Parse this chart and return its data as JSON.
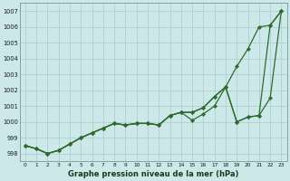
{
  "xlabel": "Graphe pression niveau de la mer (hPa)",
  "bg_color": "#cce8e8",
  "grid_color": "#aacccc",
  "line_color": "#2d6a2d",
  "marker_color": "#2d6a2d",
  "ylim": [
    997.5,
    1007.5
  ],
  "yticks": [
    998,
    999,
    1000,
    1001,
    1002,
    1003,
    1004,
    1005,
    1006,
    1007
  ],
  "xticks": [
    0,
    1,
    2,
    3,
    4,
    5,
    6,
    7,
    8,
    9,
    10,
    11,
    12,
    13,
    14,
    15,
    16,
    17,
    18,
    19,
    20,
    21,
    22,
    23
  ],
  "xlim": [
    -0.5,
    23.5
  ],
  "series1": [
    998.5,
    998.3,
    998.0,
    998.2,
    998.6,
    999.0,
    999.3,
    999.6,
    999.9,
    999.8,
    999.9,
    999.9,
    999.8,
    1000.4,
    1000.6,
    1000.1,
    1000.5,
    1001.0,
    1002.2,
    1003.5,
    1004.6,
    1006.0,
    1006.1,
    1007.0
  ],
  "series2": [
    998.5,
    998.3,
    998.0,
    998.2,
    998.6,
    999.0,
    999.3,
    999.6,
    999.9,
    999.8,
    999.9,
    999.9,
    999.8,
    1000.4,
    1000.6,
    1000.6,
    1000.9,
    1001.6,
    1002.2,
    1000.0,
    1000.3,
    1000.4,
    1001.5,
    1007.0
  ],
  "series3": [
    998.5,
    998.3,
    998.0,
    998.2,
    998.6,
    999.0,
    999.3,
    999.6,
    999.9,
    999.8,
    999.9,
    999.9,
    999.8,
    1000.4,
    1000.6,
    1000.6,
    1000.9,
    1001.6,
    1002.2,
    1000.0,
    1000.3,
    1000.4,
    1006.1,
    1007.0
  ]
}
